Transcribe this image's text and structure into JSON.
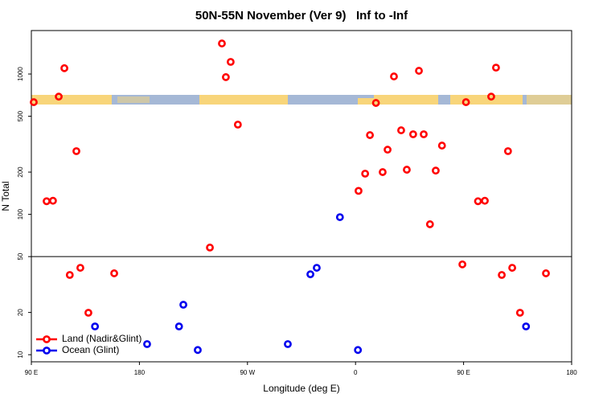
{
  "chart_data": {
    "type": "scatter",
    "title": "50N-55N November (Ver 9)   Inf to -Inf",
    "x_label": "Longitude (deg E)",
    "y_label": "N Total",
    "log_y": true,
    "xlim": [
      90,
      540
    ],
    "ylim": [
      8.9,
      2040
    ],
    "xticks": [
      {
        "value": 90,
        "label": "90 E"
      },
      180,
      {
        "value": 270,
        "label": "90 W"
      },
      {
        "value": 360,
        "label": "0"
      },
      {
        "value": 450,
        "label": "90 E"
      },
      {
        "value": 540,
        "label": "180"
      }
    ],
    "yticks": [
      10,
      20,
      50,
      100,
      200,
      500,
      1000
    ],
    "reference_line": 50,
    "legend": "bottom-left",
    "series": [
      {
        "name": "Land (Nadir&Glint)",
        "color": "#ff0000",
        "x": [
          92,
          102.7,
          108,
          117.5,
          112.8,
          127.5,
          122,
          130.8,
          137.5,
          159,
          248.7,
          256,
          252,
          262,
          238.7,
          362.5,
          368,
          372,
          377,
          382.6,
          386.7,
          392,
          398,
          402.7,
          408,
          412.8,
          416.8,
          422,
          426.8,
          432,
          449,
          452,
          462,
          467.7,
          477,
          473,
          487,
          481.8,
          490.5,
          497,
          518.6
        ],
        "values": [
          630,
          124,
          125,
          1100,
          690,
          282,
          37,
          41.6,
          19.9,
          38,
          1650,
          1220,
          950,
          436,
          58,
          147,
          195,
          367,
          622,
          200,
          289,
          961,
          397,
          208,
          372,
          1054,
          372,
          85,
          205,
          309,
          44,
          630,
          124,
          125,
          1110,
          690,
          282,
          37,
          41.6,
          19.9,
          38
        ]
      },
      {
        "name": "Ocean (Glint)",
        "color": "#0000ee",
        "x": [
          143,
          186.4,
          213,
          216.6,
          228.6,
          303.6,
          322.4,
          327.7,
          347,
          362,
          502
        ],
        "values": [
          15.9,
          11.9,
          15.9,
          22.7,
          10.8,
          11.9,
          37.4,
          41.6,
          95.5,
          10.8,
          15.9
        ]
      }
    ]
  }
}
